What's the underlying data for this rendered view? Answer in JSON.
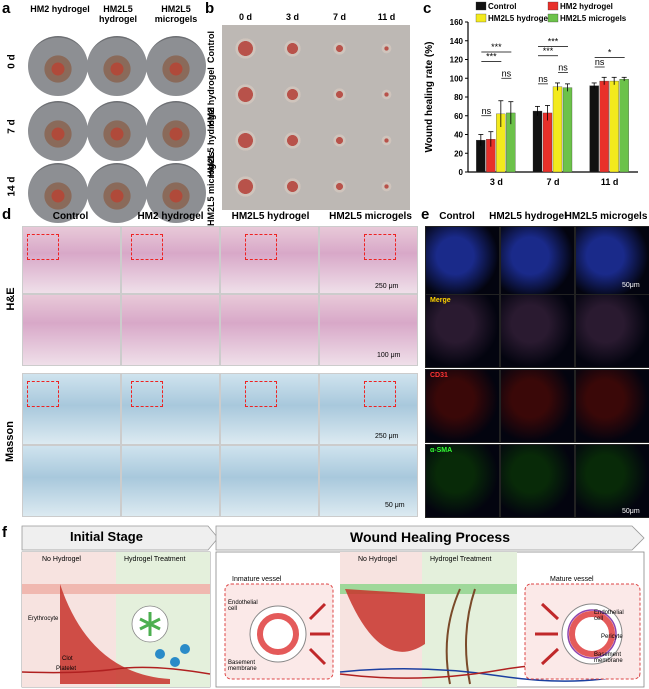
{
  "panel_labels": {
    "a": "a",
    "b": "b",
    "c": "c",
    "d": "d",
    "e": "e",
    "f": "f"
  },
  "panel_a": {
    "columns": [
      "HM2 hydrogel",
      "HM2L5 hydrogel",
      "HM2L5 microgels"
    ],
    "rows": [
      "0 d",
      "7 d",
      "14 d"
    ]
  },
  "panel_b": {
    "columns": [
      "0 d",
      "3 d",
      "7 d",
      "11 d"
    ],
    "rows": [
      "Control",
      "HM2 hydrogel",
      "HM2L5 hydrogel",
      "HM2L5 microgels"
    ]
  },
  "chart_data": {
    "type": "bar",
    "ylabel": "Wound healing rate (%)",
    "ylim": [
      0,
      160
    ],
    "yticks": [
      0,
      20,
      40,
      60,
      80,
      100,
      120,
      140,
      160
    ],
    "categories": [
      "3 d",
      "7 d",
      "11 d"
    ],
    "series": [
      {
        "name": "Control",
        "color": "#111111",
        "values": [
          34,
          65,
          92
        ]
      },
      {
        "name": "HM2 hydrogel",
        "color": "#e8302a",
        "values": [
          35,
          63,
          97
        ]
      },
      {
        "name": "HM2L5 hydrogel",
        "color": "#f3ea1d",
        "values": [
          62,
          91,
          97
        ]
      },
      {
        "name": "HM2L5 microgels",
        "color": "#6cc24a",
        "values": [
          63,
          90,
          99
        ]
      }
    ],
    "significance": [
      "ns",
      "ns",
      "***",
      "***",
      "***",
      "***",
      "ns",
      "ns",
      "ns",
      "*"
    ],
    "legend": "top"
  },
  "panel_d": {
    "columns": [
      "Control",
      "HM2 hydrogel",
      "HM2L5 hydrogel",
      "HM2L5 microgels"
    ],
    "rows": [
      "H&E",
      "Masson"
    ],
    "scalebars": [
      "250 μm",
      "100 μm",
      "250 μm",
      "50 μm"
    ]
  },
  "panel_e": {
    "columns": [
      "Control",
      "HM2L5 hydrogel",
      "HM2L5 microgels"
    ],
    "row_labels": [
      "Merge",
      "CD31",
      "α-SMA"
    ],
    "scalebars": [
      "50μm",
      "50μm"
    ]
  },
  "panel_f": {
    "stage1_title": "Initial Stage",
    "stage2_title": "Wound Healing Process",
    "no_hydrogel": "No Hydrogel",
    "hydrogel_treatment": "Hydrogel Treatment",
    "erythrocyte": "Erythrocyte",
    "clot": "Clot",
    "platelet": "Platelet",
    "immature_vessel": "Inmature vessel",
    "mature_vessel": "Mature vessel",
    "endothelial_cell": "Endothelial cell",
    "basement_membrane": "Basement membrane",
    "pericyte": "Pericyte"
  }
}
